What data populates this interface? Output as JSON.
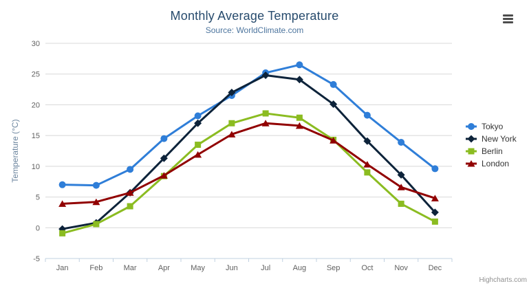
{
  "header": {
    "title": "Monthly Average Temperature",
    "subtitle": "Source: WorldClimate.com"
  },
  "icons": {
    "context_menu": "hamburger-menu-icon"
  },
  "credits": {
    "label": "Highcharts.com"
  },
  "colors": {
    "title_text": "#274b6d",
    "subtitle_text": "#4d759e",
    "axis_label_text": "#606060",
    "axis_title_text": "#6d869f",
    "legend_text": "#333333",
    "gridline": "#d8d8d8",
    "axis_line": "#c0d0e0",
    "credits_text": "#909090",
    "background": "#ffffff"
  },
  "chart_data": {
    "type": "line",
    "title": "Monthly Average Temperature",
    "subtitle": "Source: WorldClimate.com",
    "xlabel": "",
    "ylabel": "Temperature (°C)",
    "categories": [
      "Jan",
      "Feb",
      "Mar",
      "Apr",
      "May",
      "Jun",
      "Jul",
      "Aug",
      "Sep",
      "Oct",
      "Nov",
      "Dec"
    ],
    "yticks": [
      -5,
      0,
      5,
      10,
      15,
      20,
      25,
      30
    ],
    "ylim": [
      -5,
      30
    ],
    "grid": true,
    "legend_position": "right",
    "series": [
      {
        "name": "Tokyo",
        "color": "#2f7ed8",
        "marker": "circle",
        "values": [
          7.0,
          6.9,
          9.5,
          14.5,
          18.2,
          21.5,
          25.2,
          26.5,
          23.3,
          18.3,
          13.9,
          9.6
        ]
      },
      {
        "name": "New York",
        "color": "#0d233a",
        "marker": "diamond",
        "values": [
          -0.2,
          0.8,
          5.7,
          11.3,
          17.0,
          22.0,
          24.8,
          24.1,
          20.1,
          14.1,
          8.6,
          2.5
        ]
      },
      {
        "name": "Berlin",
        "color": "#8bbc21",
        "marker": "square",
        "values": [
          -0.9,
          0.6,
          3.5,
          8.4,
          13.5,
          17.0,
          18.6,
          17.9,
          14.3,
          9.0,
          3.9,
          1.0
        ]
      },
      {
        "name": "London",
        "color": "#910000",
        "marker": "triangle",
        "values": [
          3.9,
          4.2,
          5.7,
          8.5,
          11.9,
          15.2,
          17.0,
          16.6,
          14.2,
          10.3,
          6.6,
          4.8
        ]
      }
    ]
  }
}
